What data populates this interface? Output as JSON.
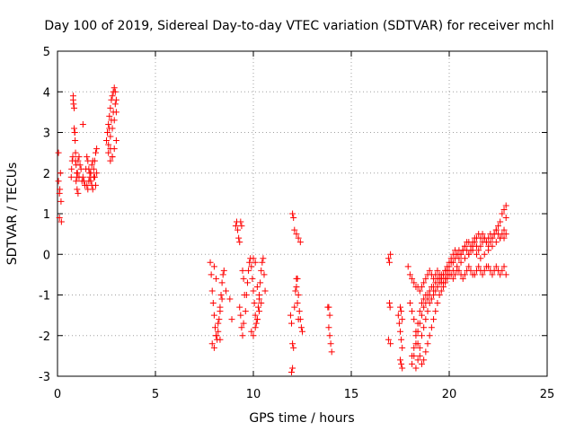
{
  "chart_data": {
    "type": "scatter",
    "title": "Day 100 of 2019, Sidereal Day-to-day VTEC variation (SDTVAR) for receiver mchl",
    "xlabel": "GPS time / hours",
    "ylabel": "SDTVAR / TECUs",
    "xlim": [
      0,
      25
    ],
    "ylim": [
      -3,
      5
    ],
    "xticks": [
      0,
      5,
      10,
      15,
      20,
      25
    ],
    "yticks": [
      -3,
      -2,
      -1,
      0,
      1,
      2,
      3,
      4,
      5
    ],
    "grid": true,
    "marker": "+",
    "color": "#ff0000",
    "series": [
      {
        "x": [
          0.05,
          0.05,
          0.1,
          0.1,
          0.12,
          0.15,
          0.18,
          0.2,
          0.7,
          0.72,
          0.75,
          0.78,
          0.8,
          0.82,
          0.85,
          0.88,
          0.9,
          0.92,
          0.95,
          0.98,
          1.0,
          1.02,
          1.05,
          1.1,
          1.15,
          1.2,
          1.25,
          1.3,
          1.35,
          1.4,
          1.45,
          1.5,
          1.55,
          1.6,
          1.65,
          1.7,
          1.75,
          1.8,
          1.85,
          1.9,
          1.95,
          2.0,
          0.8,
          0.85,
          0.88,
          0.92,
          0.95,
          1.0,
          1.05,
          1.1,
          1.3,
          1.5,
          1.55,
          1.6,
          1.65,
          1.7,
          1.75,
          1.8,
          1.85,
          1.9,
          1.95,
          2.0,
          2.5,
          2.55,
          2.6,
          2.65,
          2.7,
          2.75,
          2.8,
          2.85,
          2.9,
          2.95,
          3.0,
          2.6,
          2.7,
          2.8,
          2.9,
          3.0,
          2.55,
          2.65,
          2.75,
          2.85,
          2.95,
          2.6,
          2.7,
          2.8,
          2.9,
          3.0,
          2.7,
          2.8,
          7.8,
          7.85,
          7.9,
          7.95,
          8.0,
          8.05,
          8.1,
          8.15,
          8.2,
          8.25,
          8.3,
          8.35,
          8.4,
          8.45,
          8.5,
          7.9,
          8.0,
          8.1,
          8.2,
          8.3,
          8.4,
          8.0,
          8.1,
          8.3,
          8.6,
          8.8,
          8.9,
          9.1,
          9.15,
          9.2,
          9.25,
          9.3,
          9.35,
          9.4,
          9.45,
          9.5,
          9.55,
          9.3,
          9.35,
          9.4,
          9.45,
          9.5,
          9.6,
          9.65,
          9.7,
          9.75,
          9.8,
          9.85,
          9.9,
          9.95,
          10.0,
          10.05,
          10.1,
          10.15,
          10.2,
          10.25,
          10.3,
          10.35,
          10.4,
          10.45,
          10.5,
          10.55,
          10.6,
          9.9,
          10.0,
          10.1,
          10.2,
          10.3,
          10.4,
          10.0,
          10.1,
          10.2,
          10.3,
          11.9,
          11.95,
          12.0,
          12.05,
          12.1,
          12.15,
          12.2,
          12.25,
          12.3,
          12.35,
          12.4,
          12.45,
          12.5,
          12.1,
          12.2,
          12.3,
          12.4,
          12.0,
          12.05,
          11.95,
          12.0,
          12.2,
          12.25,
          12.3,
          13.8,
          13.85,
          13.9,
          13.95,
          14.0,
          13.85,
          13.9,
          16.9,
          16.95,
          17.0,
          16.9,
          17.0,
          16.95,
          16.98,
          17.4,
          17.45,
          17.5,
          17.55,
          17.6,
          17.5,
          17.55,
          17.6,
          17.5,
          17.55,
          17.6,
          17.9,
          18.0,
          18.1,
          18.2,
          18.3,
          18.4,
          18.5,
          18.6,
          18.7,
          18.8,
          18.9,
          19.0,
          19.1,
          19.2,
          19.3,
          19.4,
          19.5,
          19.6,
          19.7,
          19.8,
          19.9,
          20.0,
          20.1,
          20.2,
          20.3,
          20.4,
          20.5,
          20.6,
          20.7,
          20.8,
          20.9,
          21.0,
          21.1,
          21.2,
          21.3,
          21.4,
          21.5,
          21.6,
          21.7,
          21.8,
          21.9,
          22.0,
          22.1,
          22.2,
          22.3,
          22.4,
          22.5,
          22.6,
          22.7,
          22.8,
          22.9,
          18.1,
          18.2,
          18.3,
          18.4,
          18.5,
          18.6,
          18.7,
          18.8,
          18.9,
          19.0,
          19.1,
          19.2,
          19.3,
          19.4,
          19.5,
          19.6,
          19.7,
          19.8,
          19.9,
          20.0,
          20.1,
          20.2,
          20.3,
          20.4,
          20.5,
          20.6,
          20.7,
          20.8,
          20.9,
          21.0,
          21.1,
          21.2,
          21.3,
          21.4,
          21.5,
          21.6,
          21.7,
          21.8,
          21.9,
          22.0,
          22.1,
          22.2,
          22.3,
          22.4,
          22.5,
          22.6,
          22.7,
          22.8,
          22.9,
          18.3,
          18.4,
          18.5,
          18.6,
          18.7,
          18.8,
          18.9,
          19.0,
          19.1,
          19.2,
          19.3,
          19.4,
          19.5,
          19.6,
          19.7,
          19.8,
          19.9,
          20.0,
          20.1,
          20.2,
          20.3,
          20.4,
          20.5,
          20.6,
          20.7,
          20.8,
          20.9,
          21.0,
          21.1,
          21.2,
          21.3,
          21.4,
          21.5,
          21.6,
          21.7,
          21.8,
          21.9,
          22.0,
          22.1,
          22.2,
          22.3,
          22.4,
          22.5,
          22.6,
          22.7,
          22.8,
          22.9,
          18.1,
          18.2,
          18.3,
          18.4,
          18.5,
          18.6,
          18.7,
          18.8,
          18.9,
          19.0,
          19.2,
          19.4,
          19.6,
          19.8,
          20.0,
          20.2,
          20.4,
          20.6,
          20.8,
          21.0,
          21.2,
          21.4,
          21.6,
          21.8,
          22.0,
          22.2,
          22.4,
          22.6,
          22.8,
          22.9,
          18.0,
          18.1,
          18.2,
          18.3,
          18.4,
          18.5,
          18.6,
          18.7,
          18.8,
          18.9,
          19.0,
          19.1,
          19.2,
          19.3,
          19.4,
          19.5,
          19.6,
          19.7,
          19.8,
          19.9,
          20.0
        ],
        "y": [
          2.5,
          1.8,
          1.5,
          0.9,
          1.6,
          2.0,
          1.3,
          0.8,
          1.9,
          2.1,
          2.3,
          2.4,
          3.8,
          3.7,
          3.1,
          3.0,
          2.8,
          2.3,
          2.2,
          2.0,
          1.9,
          2.0,
          2.3,
          2.4,
          2.2,
          2.1,
          1.8,
          1.9,
          1.8,
          1.7,
          2.1,
          2.4,
          2.3,
          2.1,
          2.0,
          1.8,
          1.7,
          1.6,
          1.9,
          2.3,
          2.5,
          2.6,
          3.9,
          3.6,
          3.0,
          2.5,
          1.8,
          1.6,
          1.5,
          1.9,
          3.2,
          1.7,
          1.6,
          1.8,
          1.9,
          2.0,
          2.2,
          2.3,
          2.1,
          1.9,
          1.7,
          2.0,
          2.8,
          3.0,
          3.2,
          3.4,
          3.6,
          3.8,
          3.9,
          4.0,
          4.1,
          4.0,
          3.8,
          2.5,
          2.6,
          2.4,
          2.6,
          2.8,
          3.0,
          3.1,
          3.3,
          3.5,
          3.7,
          2.7,
          2.9,
          3.1,
          3.3,
          3.5,
          2.3,
          2.4,
          -0.2,
          -0.5,
          -0.9,
          -1.2,
          -1.5,
          -1.8,
          -2.0,
          -2.1,
          -1.9,
          -1.6,
          -1.3,
          -1.0,
          -0.7,
          -0.5,
          -0.4,
          -2.2,
          -2.3,
          -2.0,
          -1.7,
          -1.4,
          -1.1,
          -0.3,
          -0.6,
          -2.1,
          -0.9,
          -1.1,
          -1.6,
          0.7,
          0.8,
          0.6,
          0.4,
          0.3,
          0.8,
          0.7,
          -0.4,
          -0.6,
          -1.0,
          -1.3,
          -1.5,
          -1.8,
          -2.0,
          -1.7,
          -1.4,
          -1.0,
          -0.7,
          -0.4,
          -0.2,
          -0.1,
          -0.3,
          -0.6,
          -0.9,
          -1.2,
          -1.5,
          -1.7,
          -1.6,
          -1.3,
          -1.0,
          -0.7,
          -0.4,
          -0.2,
          -0.1,
          -0.5,
          -0.9,
          -1.9,
          -2.0,
          -1.8,
          -1.6,
          -1.4,
          -1.2,
          -0.1,
          -0.2,
          -0.8,
          -1.1,
          -1.5,
          -1.7,
          -2.2,
          -2.3,
          -1.3,
          -0.9,
          -0.8,
          -0.6,
          -1.0,
          -1.4,
          -1.6,
          -1.8,
          -1.9,
          0.6,
          0.5,
          0.4,
          0.3,
          1.0,
          0.9,
          -2.9,
          -2.8,
          -0.6,
          -1.2,
          -1.6,
          -1.3,
          -1.8,
          -2.0,
          -2.2,
          -2.4,
          -1.3,
          -1.5,
          -0.1,
          -0.2,
          0.0,
          -2.1,
          -2.2,
          -1.2,
          -1.3,
          -1.5,
          -1.7,
          -1.9,
          -2.1,
          -2.3,
          -2.6,
          -2.7,
          -2.8,
          -1.3,
          -1.4,
          -1.6,
          -0.3,
          -0.5,
          -0.6,
          -0.7,
          -0.8,
          -0.8,
          -0.9,
          -0.8,
          -0.7,
          -0.6,
          -0.5,
          -0.4,
          -0.5,
          -0.6,
          -0.5,
          -0.4,
          -0.5,
          -0.6,
          -0.7,
          -0.6,
          -0.5,
          -0.4,
          -0.5,
          -0.6,
          -0.5,
          -0.4,
          -0.4,
          -0.5,
          -0.6,
          -0.5,
          -0.4,
          -0.3,
          -0.4,
          -0.5,
          -0.5,
          -0.4,
          -0.3,
          -0.4,
          -0.5,
          -0.4,
          -0.3,
          -0.3,
          -0.4,
          -0.5,
          -0.4,
          -0.3,
          -0.4,
          -0.5,
          -0.4,
          -0.3,
          -0.5,
          -2.5,
          -2.3,
          -2.0,
          -1.7,
          -1.4,
          -1.2,
          -1.1,
          -1.0,
          -1.0,
          -0.9,
          -0.8,
          -0.8,
          -0.7,
          -0.6,
          -0.6,
          -0.5,
          -0.5,
          -0.4,
          -0.4,
          -0.3,
          -0.2,
          -0.2,
          -0.1,
          0.0,
          0.1,
          0.0,
          0.1,
          0.2,
          0.3,
          0.3,
          0.2,
          0.3,
          0.4,
          0.4,
          0.5,
          0.4,
          0.5,
          0.4,
          0.3,
          0.4,
          0.5,
          0.4,
          0.5,
          0.6,
          0.5,
          0.4,
          0.5,
          0.4,
          0.5,
          -2.8,
          -2.6,
          -2.3,
          -2.0,
          -1.8,
          -1.6,
          -1.4,
          -1.2,
          -1.1,
          -1.0,
          -0.9,
          -0.8,
          -0.7,
          -0.6,
          -0.5,
          -0.4,
          -0.3,
          -0.2,
          -0.1,
          0.0,
          0.1,
          0.0,
          -0.1,
          0.0,
          0.1,
          0.2,
          0.1,
          0.0,
          0.1,
          0.2,
          0.3,
          0.2,
          0.1,
          0.2,
          0.3,
          0.4,
          0.3,
          0.2,
          0.3,
          0.4,
          0.5,
          0.6,
          0.7,
          0.8,
          1.0,
          1.1,
          1.2,
          -2.7,
          -2.5,
          -2.2,
          -1.9,
          -1.7,
          -1.5,
          -1.3,
          -1.2,
          -1.1,
          -1.0,
          -0.9,
          -0.8,
          -0.7,
          -0.6,
          -0.5,
          -0.4,
          -0.3,
          -0.2,
          -0.1,
          0.0,
          0.1,
          0.0,
          -0.1,
          0.0,
          0.1,
          0.2,
          0.3,
          0.4,
          0.6,
          0.9,
          -1.2,
          -1.4,
          -1.6,
          -1.9,
          -2.2,
          -2.5,
          -2.7,
          -2.6,
          -2.4,
          -2.2,
          -2.0,
          -1.8,
          -1.6,
          -1.4,
          -1.2,
          -1.0,
          -0.9,
          -0.8,
          -0.7,
          -0.6,
          -0.5
        ]
      }
    ]
  }
}
